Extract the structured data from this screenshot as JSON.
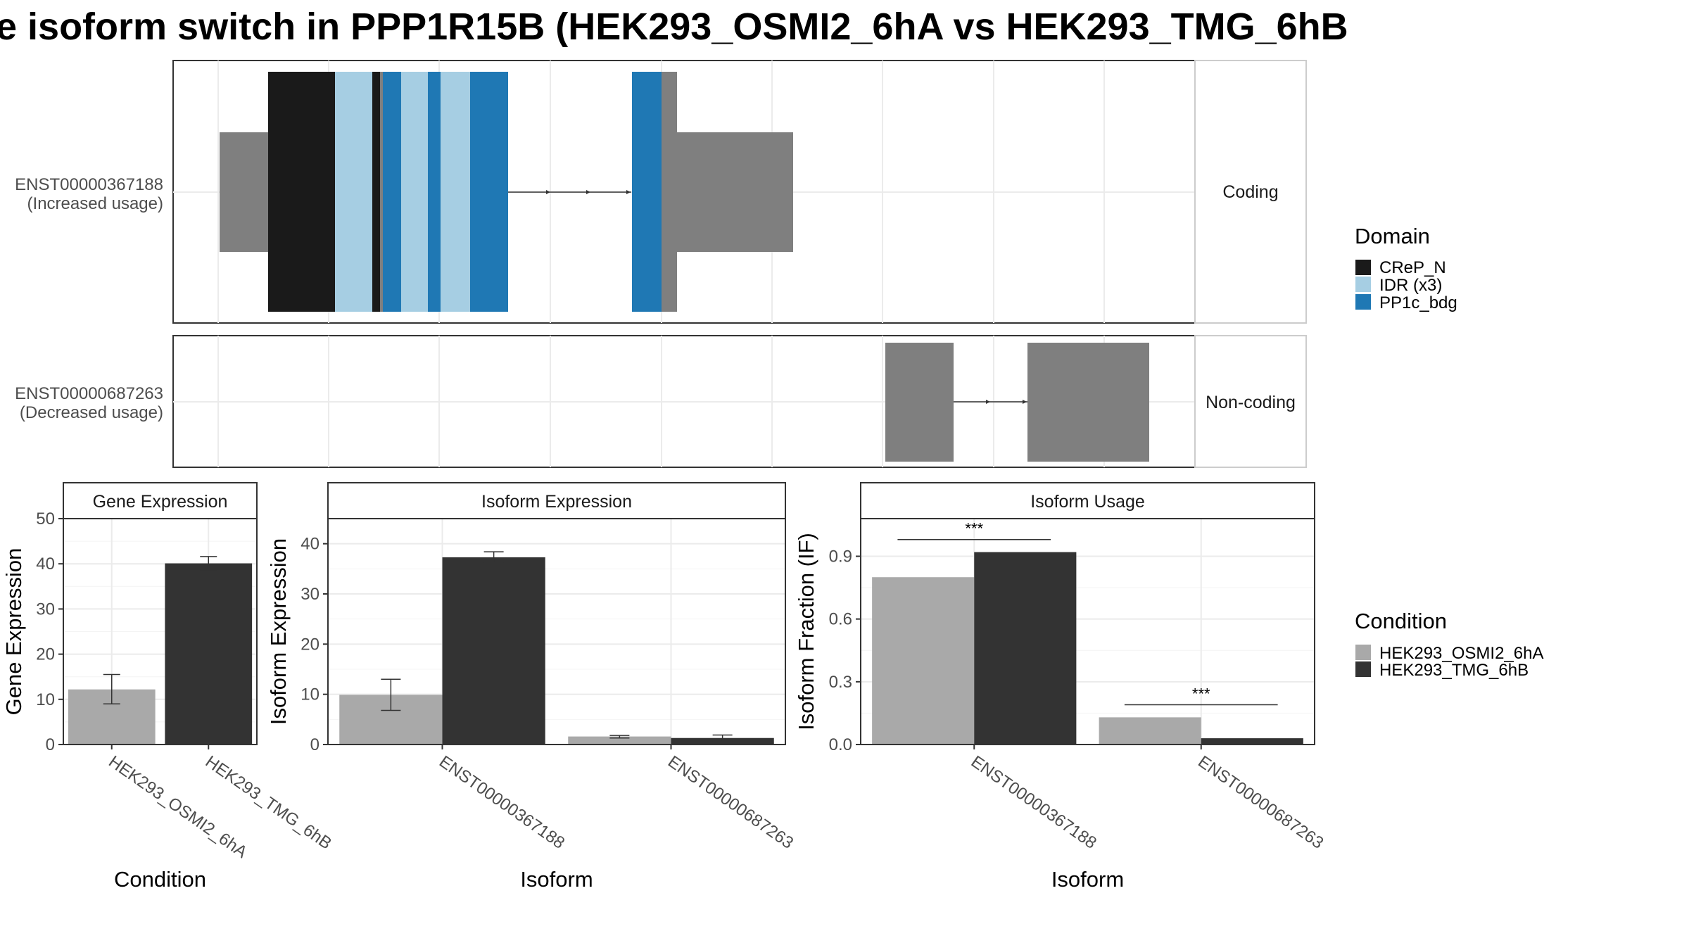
{
  "title": "e isoform switch in PPP1R15B (HEK293_OSMI2_6hA vs HEK293_TMG_6hB",
  "colors": {
    "domain_crep": "#1a1a1a",
    "domain_idr": "#a6cee3",
    "domain_pp1c": "#1f78b4",
    "exon_grey": "#7f7f7f",
    "cond_a": "#a9a9a9",
    "cond_b": "#333333",
    "strip_bg": "#ffffff",
    "grid": "#ebebeb"
  },
  "structure": {
    "tracks": [
      {
        "id": "ENST00000367188",
        "label_line1": "ENST00000367188",
        "label_line2": "(Increased usage)",
        "strip": "Coding"
      },
      {
        "id": "ENST00000687263",
        "label_line1": "ENST00000687263",
        "label_line2": "(Decreased usage)",
        "strip": "Non-coding"
      }
    ]
  },
  "legend_domain": {
    "title": "Domain",
    "items": [
      {
        "label": "CReP_N",
        "color_key": "domain_crep"
      },
      {
        "label": "IDR (x3)",
        "color_key": "domain_idr"
      },
      {
        "label": "PP1c_bdg",
        "color_key": "domain_pp1c"
      }
    ]
  },
  "legend_condition": {
    "title": "Condition",
    "items": [
      {
        "label": "HEK293_OSMI2_6hA",
        "color_key": "cond_a"
      },
      {
        "label": "HEK293_TMG_6hB",
        "color_key": "cond_b"
      }
    ]
  },
  "chart_data": [
    {
      "type": "bar",
      "title": "Gene Expression",
      "xlabel": "Condition",
      "ylabel": "Gene Expression",
      "ylim": [
        0,
        50
      ],
      "yticks": [
        0,
        10,
        20,
        30,
        40,
        50
      ],
      "categories": [
        "HEK293_OSMI2_6hA",
        "HEK293_TMG_6hB"
      ],
      "values": [
        12.2,
        40.1
      ],
      "error_low": [
        9.0,
        38.7
      ],
      "error_high": [
        15.5,
        41.6
      ]
    },
    {
      "type": "bar",
      "title": "Isoform Expression",
      "xlabel": "Isoform",
      "ylabel": "Isoform Expression",
      "ylim": [
        0,
        45
      ],
      "yticks": [
        0,
        10,
        20,
        30,
        40
      ],
      "categories": [
        "ENST00000367188",
        "ENST00000687263"
      ],
      "series": [
        {
          "name": "HEK293_OSMI2_6hA",
          "values": [
            9.9,
            1.6
          ],
          "error_low": [
            6.8,
            1.3
          ],
          "error_high": [
            13.0,
            1.8
          ]
        },
        {
          "name": "HEK293_TMG_6hB",
          "values": [
            37.3,
            1.3
          ],
          "error_low": [
            36.2,
            0.6
          ],
          "error_high": [
            38.4,
            1.9
          ]
        }
      ]
    },
    {
      "type": "bar",
      "title": "Isoform Usage",
      "xlabel": "Isoform",
      "ylabel": "Isoform Fraction (IF)",
      "ylim": [
        0,
        1.08
      ],
      "yticks": [
        0.0,
        0.3,
        0.6,
        0.9
      ],
      "ytick_labels": [
        "0.0",
        "0.3",
        "0.6",
        "0.9"
      ],
      "categories": [
        "ENST00000367188",
        "ENST00000687263"
      ],
      "series": [
        {
          "name": "HEK293_OSMI2_6hA",
          "values": [
            0.8,
            0.13
          ]
        },
        {
          "name": "HEK293_TMG_6hB",
          "values": [
            0.92,
            0.03
          ]
        }
      ],
      "significance": [
        "***",
        "***"
      ],
      "significance_y": [
        0.98,
        0.19
      ]
    }
  ]
}
